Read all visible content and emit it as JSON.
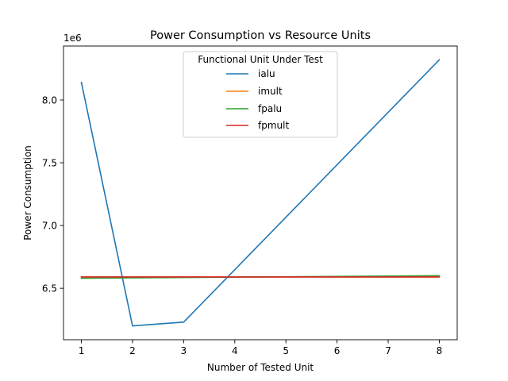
{
  "chart_data": {
    "type": "line",
    "title": "Power Consumption vs Resource Units",
    "xlabel": "Number of Tested Unit",
    "ylabel": "Power Consumption",
    "y_offset_label": "1e6",
    "x": [
      1,
      2,
      3,
      4,
      5,
      6,
      7,
      8
    ],
    "x_ticks": [
      1,
      2,
      3,
      4,
      5,
      6,
      7,
      8
    ],
    "x_tick_labels": [
      "1",
      "2",
      "3",
      "4",
      "5",
      "6",
      "7",
      "8"
    ],
    "y_ticks": [
      6500000,
      7000000,
      7500000,
      8000000
    ],
    "y_tick_labels": [
      "6.5",
      "7.0",
      "7.5",
      "8.0"
    ],
    "xlim": [
      0.65,
      8.35
    ],
    "ylim": [
      6090000,
      8430000
    ],
    "grid": false,
    "legend": {
      "title": "Functional Unit Under Test",
      "placement": "upper center"
    },
    "series": [
      {
        "name": "ialu",
        "color": "#1f77b4",
        "x": [
          1,
          2,
          3,
          8
        ],
        "values": [
          8140000,
          6200000,
          6230000,
          8320000
        ]
      },
      {
        "name": "imult",
        "color": "#ff7f0e",
        "x": [
          1,
          8
        ],
        "values": [
          6590000,
          6590000
        ]
      },
      {
        "name": "fpalu",
        "color": "#2ca02c",
        "x": [
          1,
          8
        ],
        "values": [
          6580000,
          6600000
        ]
      },
      {
        "name": "fpmult",
        "color": "#d62728",
        "x": [
          1,
          8
        ],
        "values": [
          6590000,
          6590000
        ]
      }
    ]
  }
}
